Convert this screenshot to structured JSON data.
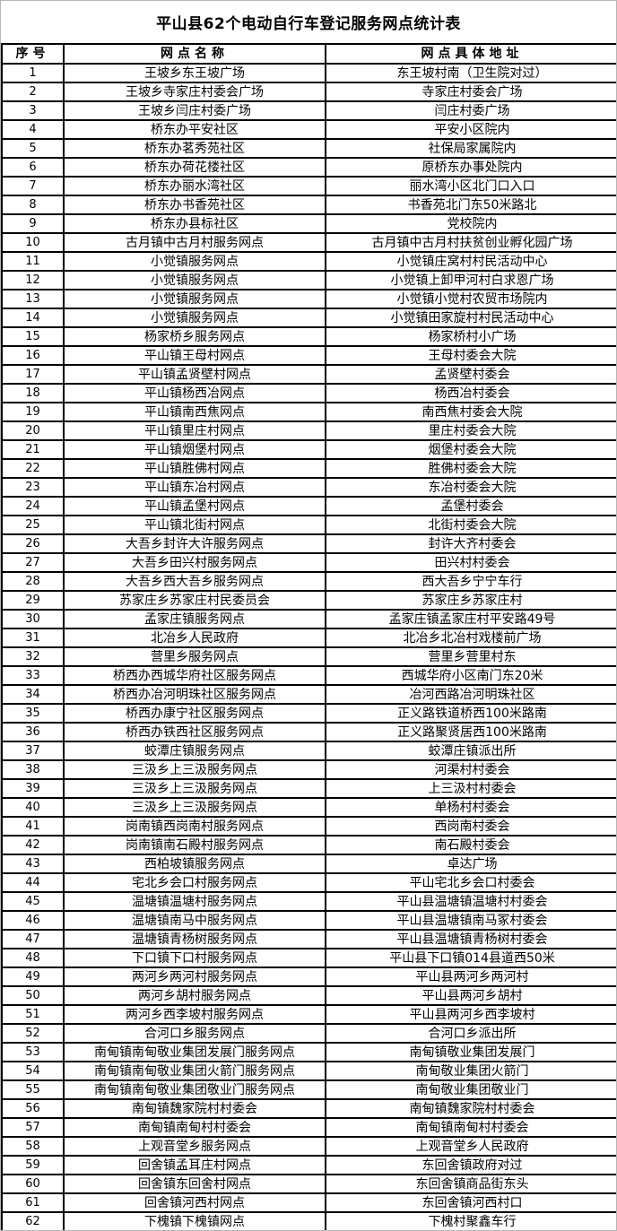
{
  "page": {
    "title": "平山县62个电动自行车登记服务网点统计表"
  },
  "colors": {
    "table_border": "#000000",
    "outer_border": "#b7b7b7",
    "text": "#000000",
    "background": "#ffffff"
  },
  "table": {
    "columns": [
      "序号",
      "网点名称",
      "网点具体地址"
    ],
    "rows": [
      {
        "no": "1",
        "name": "王坡乡东王坡广场",
        "address": "东王坡村南（卫生院对过）"
      },
      {
        "no": "2",
        "name": "王坡乡寺家庄村委会广场",
        "address": "寺家庄村委会广场"
      },
      {
        "no": "3",
        "name": "王坡乡闫庄村委广场",
        "address": "闫庄村委广场"
      },
      {
        "no": "4",
        "name": "桥东办平安社区",
        "address": "平安小区院内"
      },
      {
        "no": "5",
        "name": "桥东办茗秀苑社区",
        "address": "社保局家属院内"
      },
      {
        "no": "6",
        "name": "桥东办荷花楼社区",
        "address": "原桥东办事处院内"
      },
      {
        "no": "7",
        "name": "桥东办丽水湾社区",
        "address": "丽水湾小区北门口入口"
      },
      {
        "no": "8",
        "name": "桥东办书香苑社区",
        "address": "书香苑北门东50米路北"
      },
      {
        "no": "9",
        "name": "桥东办县标社区",
        "address": "党校院内"
      },
      {
        "no": "10",
        "name": "古月镇中古月村服务网点",
        "address": "古月镇中古月村扶贫创业孵化园广场"
      },
      {
        "no": "11",
        "name": "小觉镇服务网点",
        "address": "小觉镇庄窝村村民活动中心"
      },
      {
        "no": "12",
        "name": "小觉镇服务网点",
        "address": "小觉镇上卸甲河村白求恩广场"
      },
      {
        "no": "13",
        "name": "小觉镇服务网点",
        "address": "小觉镇小觉村农贸市场院内"
      },
      {
        "no": "14",
        "name": "小觉镇服务网点",
        "address": "小觉镇田家旋村村民活动中心"
      },
      {
        "no": "15",
        "name": "杨家桥乡服务网点",
        "address": "杨家桥村小广场"
      },
      {
        "no": "16",
        "name": "平山镇王母村网点",
        "address": "王母村委会大院"
      },
      {
        "no": "17",
        "name": "平山镇孟贤壁村网点",
        "address": "孟贤壁村委会"
      },
      {
        "no": "18",
        "name": "平山镇杨西冶网点",
        "address": "杨西冶村委会"
      },
      {
        "no": "19",
        "name": "平山镇南西焦网点",
        "address": "南西焦村委会大院"
      },
      {
        "no": "20",
        "name": "平山镇里庄村网点",
        "address": "里庄村委会大院"
      },
      {
        "no": "21",
        "name": "平山镇烟堡村网点",
        "address": "烟堡村委会大院"
      },
      {
        "no": "22",
        "name": "平山镇胜佛村网点",
        "address": "胜佛村委会大院"
      },
      {
        "no": "23",
        "name": "平山镇东冶村网点",
        "address": "东冶村委会大院"
      },
      {
        "no": "24",
        "name": "平山镇孟堡村网点",
        "address": "孟堡村委会"
      },
      {
        "no": "25",
        "name": "平山镇北街村网点",
        "address": "北街村委会大院"
      },
      {
        "no": "26",
        "name": "大吾乡封许大许服务网点",
        "address": "封许大齐村委会"
      },
      {
        "no": "27",
        "name": "大吾乡田兴村服务网点",
        "address": "田兴村村委会"
      },
      {
        "no": "28",
        "name": "大吾乡西大吾乡服务网点",
        "address": "西大吾乡宁宁车行"
      },
      {
        "no": "29",
        "name": "苏家庄乡苏家庄村民委员会",
        "address": "苏家庄乡苏家庄村"
      },
      {
        "no": "30",
        "name": "孟家庄镇服务网点",
        "address": "孟家庄镇孟家庄村平安路49号"
      },
      {
        "no": "31",
        "name": "北冶乡人民政府",
        "address": "北冶乡北冶村戏楼前广场"
      },
      {
        "no": "32",
        "name": "营里乡服务网点",
        "address": "营里乡营里村东"
      },
      {
        "no": "33",
        "name": "桥西办西城华府社区服务网点",
        "address": "西城华府小区南门东20米"
      },
      {
        "no": "34",
        "name": "桥西办冶河明珠社区服务网点",
        "address": "冶河西路冶河明珠社区"
      },
      {
        "no": "35",
        "name": "桥西办康宁社区服务网点",
        "address": "正义路铁道桥西100米路南"
      },
      {
        "no": "36",
        "name": "桥西办铁西社区服务网点",
        "address": "正义路聚贤居西100米路南"
      },
      {
        "no": "37",
        "name": "蛟潭庄镇服务网点",
        "address": "蛟潭庄镇派出所"
      },
      {
        "no": "38",
        "name": "三汲乡上三汲服务网点",
        "address": "河渠村村委会"
      },
      {
        "no": "39",
        "name": "三汲乡上三汲服务网点",
        "address": "上三汲村村委会"
      },
      {
        "no": "40",
        "name": "三汲乡上三汲服务网点",
        "address": "单杨村村委会"
      },
      {
        "no": "41",
        "name": "岗南镇西岗南村服务网点",
        "address": "西岗南村委会"
      },
      {
        "no": "42",
        "name": "岗南镇南石殿村服务网点",
        "address": "南石殿村委会"
      },
      {
        "no": "43",
        "name": "西柏坡镇服务网点",
        "address": "卓达广场"
      },
      {
        "no": "44",
        "name": "宅北乡会口村服务网点",
        "address": "平山宅北乡会口村委会"
      },
      {
        "no": "45",
        "name": "温塘镇温塘村服务网点",
        "address": "平山县温塘镇温塘村村委会"
      },
      {
        "no": "46",
        "name": "温塘镇南马中服务网点",
        "address": "平山县温塘镇南马冢村委会"
      },
      {
        "no": "47",
        "name": "温塘镇青杨树服务网点",
        "address": "平山县温塘镇青杨树村委会"
      },
      {
        "no": "48",
        "name": "下口镇下口村服务网点",
        "address": "平山县下口镇014县道西50米"
      },
      {
        "no": "49",
        "name": "两河乡两河村服务网点",
        "address": "平山县两河乡两河村"
      },
      {
        "no": "50",
        "name": "两河乡胡村服务网点",
        "address": "平山县两河乡胡村"
      },
      {
        "no": "51",
        "name": "两河乡西李坡村服务网点",
        "address": "平山县两河乡西李坡村"
      },
      {
        "no": "52",
        "name": "合河口乡服务网点",
        "address": "合河口乡派出所"
      },
      {
        "no": "53",
        "name": "南甸镇南甸敬业集团发展门服务网点",
        "address": "南甸镇敬业集团发展门"
      },
      {
        "no": "54",
        "name": "南甸镇南甸敬业集团火箭门服务网点",
        "address": "南甸敬业集团火箭门"
      },
      {
        "no": "55",
        "name": "南甸镇南甸敬业集团敬业门服务网点",
        "address": "南甸敬业集团敬业门"
      },
      {
        "no": "56",
        "name": "南甸镇魏家院村村委会",
        "address": "南甸镇魏家院村村委会"
      },
      {
        "no": "57",
        "name": "南甸镇南甸村村委会",
        "address": "南甸镇南甸村村委会"
      },
      {
        "no": "58",
        "name": "上观音堂乡服务网点",
        "address": "上观音堂乡人民政府"
      },
      {
        "no": "59",
        "name": "回舍镇孟耳庄村网点",
        "address": "东回舍镇政府对过"
      },
      {
        "no": "60",
        "name": "回舍镇东回舍村网点",
        "address": "东回舍镇商品街东头"
      },
      {
        "no": "61",
        "name": "回舍镇河西村网点",
        "address": "东回舍镇河西村口"
      },
      {
        "no": "62",
        "name": "下槐镇下槐镇网点",
        "address": "下槐村聚鑫车行"
      }
    ]
  }
}
